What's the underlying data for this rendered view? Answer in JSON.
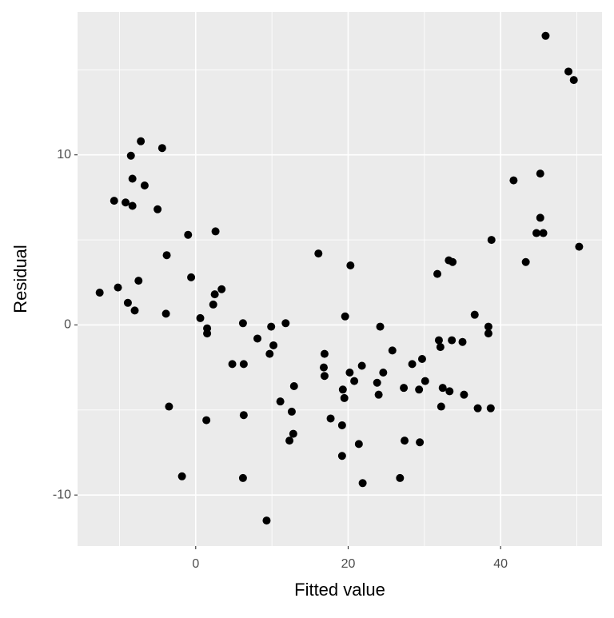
{
  "chart_data": {
    "type": "scatter",
    "x_label": "Fitted value",
    "y_label": "Residual",
    "color": "#000000",
    "xlim": [
      -15.5,
      53.3
    ],
    "ylim": [
      -13,
      18.4
    ],
    "xticks": [
      0,
      20,
      40
    ],
    "yticks": [
      -10,
      0,
      10
    ],
    "x_minor_ticks": [
      -10,
      10,
      30,
      50
    ],
    "y_minor_ticks": [
      -5,
      5,
      15
    ],
    "grid": true,
    "x": [
      -12.6,
      -10.7,
      -10.2,
      -9.2,
      -8.9,
      -8.5,
      -8.3,
      -8.3,
      -8.0,
      -7.5,
      -7.2,
      -6.7,
      -5.0,
      -4.4,
      -3.8,
      -3.9,
      -3.5,
      -1.8,
      -1.0,
      -0.6,
      0.6,
      1.5,
      1.5,
      1.4,
      2.3,
      2.5,
      2.6,
      3.4,
      4.8,
      6.2,
      6.3,
      6.3,
      6.2,
      8.1,
      9.3,
      9.7,
      9.9,
      10.2,
      11.1,
      11.8,
      12.3,
      12.6,
      12.8,
      12.9,
      16.1,
      16.9,
      16.8,
      16.9,
      17.7,
      19.2,
      19.2,
      19.3,
      19.5,
      19.6,
      20.2,
      20.3,
      20.8,
      21.4,
      21.8,
      21.9,
      23.8,
      24.0,
      24.2,
      24.6,
      25.8,
      26.8,
      27.3,
      27.4,
      28.4,
      29.3,
      29.4,
      29.7,
      30.1,
      31.7,
      31.9,
      32.1,
      32.2,
      32.4,
      33.2,
      33.3,
      33.7,
      33.6,
      35.0,
      35.2,
      36.6,
      37.0,
      38.4,
      38.4,
      38.7,
      38.8,
      41.7,
      43.3,
      44.7,
      45.2,
      45.2,
      45.6,
      45.9,
      48.9,
      49.6,
      50.3
    ],
    "values": [
      1.9,
      7.3,
      2.2,
      7.2,
      1.3,
      9.95,
      8.6,
      7.0,
      0.85,
      2.6,
      10.8,
      8.2,
      6.8,
      10.4,
      4.1,
      0.66,
      -4.8,
      -8.9,
      5.3,
      2.8,
      0.4,
      -0.2,
      -0.5,
      -5.6,
      1.2,
      1.8,
      5.5,
      2.1,
      -2.3,
      0.1,
      -2.3,
      -5.3,
      -9.0,
      -0.8,
      -11.5,
      -1.7,
      -0.1,
      -1.2,
      -4.5,
      0.1,
      -6.8,
      -5.1,
      -6.4,
      -3.6,
      4.2,
      -1.7,
      -2.5,
      -3.0,
      -5.5,
      -5.9,
      -7.7,
      -3.8,
      -4.3,
      0.5,
      -2.8,
      3.5,
      -3.3,
      -7.0,
      -2.4,
      -9.3,
      -3.4,
      -4.1,
      -0.1,
      -2.8,
      -1.5,
      -9.0,
      -3.7,
      -6.8,
      -2.3,
      -3.8,
      -6.9,
      -2.0,
      -3.3,
      3.0,
      -0.9,
      -1.3,
      -4.8,
      -3.7,
      3.8,
      -3.9,
      3.7,
      -0.9,
      -1.0,
      -4.1,
      0.6,
      -4.9,
      -0.1,
      -0.5,
      -4.9,
      5.0,
      8.5,
      3.7,
      5.4,
      8.9,
      6.3,
      5.4,
      17.0,
      14.9,
      14.4,
      4.6
    ]
  }
}
